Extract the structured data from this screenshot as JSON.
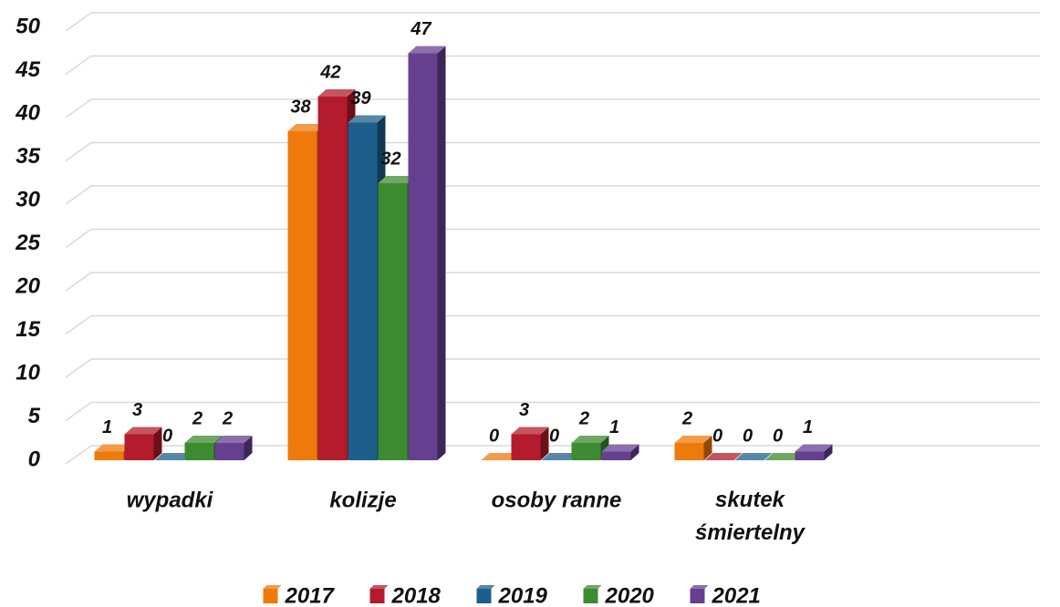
{
  "chart_data": {
    "type": "bar3d",
    "categories": [
      "wypadki",
      "kolizje",
      "osoby ranne",
      "skutek śmiertelny",
      null
    ],
    "series": [
      {
        "name": "2017",
        "color": "#ee7a0c",
        "values": [
          1,
          38,
          0,
          2,
          null
        ]
      },
      {
        "name": "2018",
        "color": "#b41b2c",
        "values": [
          3,
          42,
          3,
          0,
          null
        ]
      },
      {
        "name": "2019",
        "color": "#1d5f8a",
        "values": [
          0,
          39,
          0,
          0,
          null
        ]
      },
      {
        "name": "2020",
        "color": "#3d8b30",
        "values": [
          2,
          32,
          2,
          0,
          null
        ]
      },
      {
        "name": "2021",
        "color": "#65408f",
        "values": [
          2,
          47,
          1,
          1,
          null
        ]
      }
    ],
    "ylim": [
      0,
      50
    ],
    "yticks": [
      0,
      5,
      10,
      15,
      20,
      25,
      30,
      35,
      40,
      45,
      50
    ],
    "grid": true,
    "legend": "bottom"
  }
}
